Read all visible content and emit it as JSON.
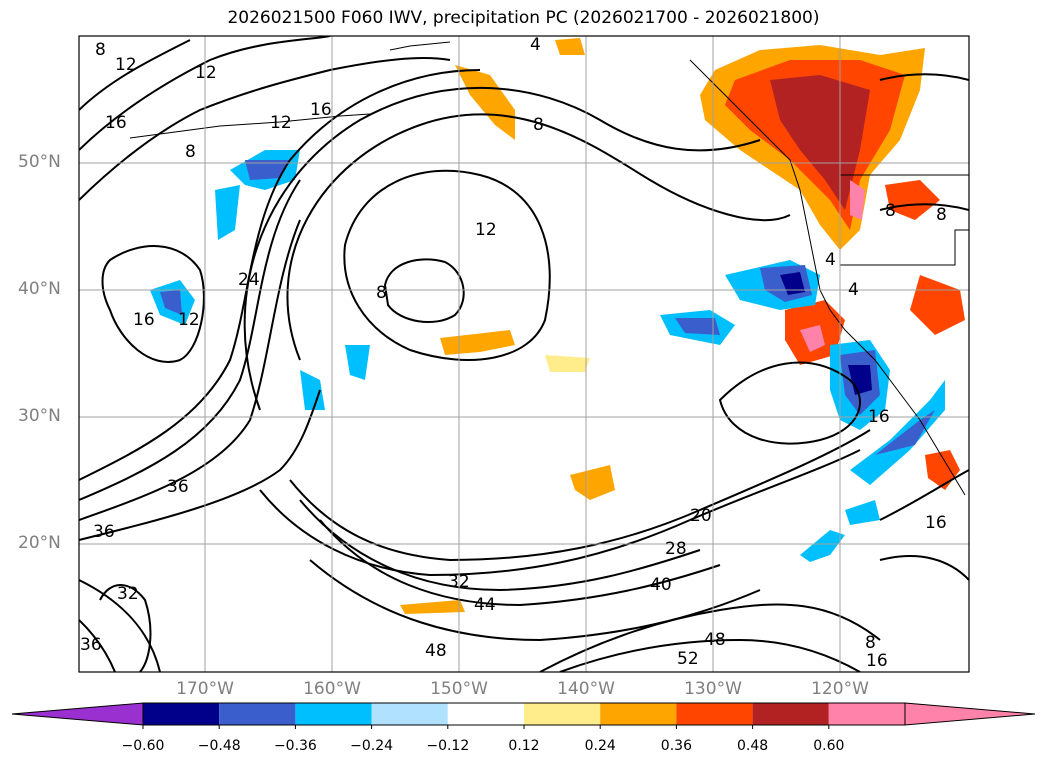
{
  "title": "2026021500 F060 IWV, precipitation PC (2026021700 - 2026021800)",
  "latitude_ticks": [
    "50°N",
    "40°N",
    "30°N",
    "20°N"
  ],
  "longitude_ticks": [
    "170°W",
    "160°W",
    "150°W",
    "140°W",
    "130°W",
    "120°W"
  ],
  "contour_labels": [
    "8",
    "12",
    "12",
    "16",
    "12",
    "16",
    "8",
    "8",
    "8",
    "12",
    "24",
    "16",
    "12",
    "36",
    "36",
    "32",
    "36",
    "32",
    "44",
    "48",
    "40",
    "48",
    "52",
    "20",
    "28",
    "8",
    "16",
    "16",
    "4",
    "4",
    "8",
    "4",
    "8",
    "16"
  ],
  "colorbar": {
    "ticks": [
      "−0.60",
      "−0.48",
      "−0.36",
      "−0.24",
      "−0.12",
      "0.12",
      "0.24",
      "0.36",
      "0.48",
      "0.60"
    ],
    "colors": [
      "#9b30d0",
      "#00008b",
      "#3a5fcd",
      "#00bfff",
      "#b0e2ff",
      "#ffffff",
      "#ffec8b",
      "#ffa500",
      "#ff4500",
      "#b22222",
      "#ff82ab",
      "#ff82ab"
    ]
  }
}
